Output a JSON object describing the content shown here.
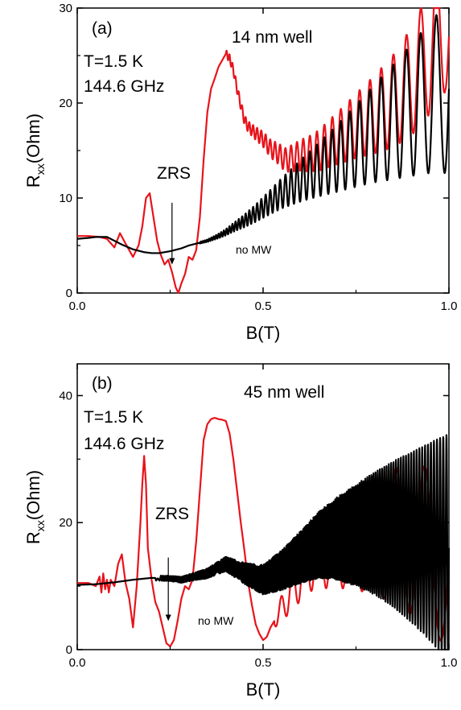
{
  "chart_data": [
    {
      "type": "line",
      "panel_label": "(a)",
      "annotations": {
        "well": "14 nm well",
        "temperature": "T=1.5 K",
        "frequency": "144.6 GHz",
        "zrs": "ZRS",
        "no_mw": "no MW"
      },
      "xlabel": "B(T)",
      "ylabel": {
        "main": "R",
        "sub": "xx",
        "unit": "(Ohm)"
      },
      "xlim": [
        0,
        1.0
      ],
      "ylim": [
        0,
        30
      ],
      "xticks": [
        0.0,
        0.5,
        1.0
      ],
      "xtick_labels": [
        "0.0",
        "0.5",
        "1.0"
      ],
      "yticks": [
        0,
        10,
        20,
        30
      ],
      "ytick_labels": [
        "0",
        "10",
        "20",
        "30"
      ],
      "grid": false,
      "zrs_arrow": {
        "x": 0.255,
        "y_from": 9.5,
        "y_to": 3.0
      },
      "series": [
        {
          "id": "red",
          "color": "#e8131b",
          "x": [
            0.0,
            0.03,
            0.06,
            0.08,
            0.1,
            0.115,
            0.13,
            0.15,
            0.165,
            0.175,
            0.185,
            0.195,
            0.205,
            0.215,
            0.225,
            0.235,
            0.245,
            0.255,
            0.265,
            0.272,
            0.28,
            0.29,
            0.3,
            0.31,
            0.32,
            0.33,
            0.34,
            0.35,
            0.36,
            0.37,
            0.38,
            0.39,
            0.4,
            0.41,
            0.42,
            0.43,
            0.44,
            0.45,
            0.46,
            0.48,
            0.5,
            0.52,
            0.54,
            0.56,
            0.58,
            0.6,
            0.62,
            0.65,
            0.68,
            0.7,
            0.72,
            0.75,
            0.8,
            0.85,
            0.9,
            0.95,
            0.97,
            0.99,
            1.0
          ],
          "y": [
            6.0,
            6.0,
            5.9,
            5.7,
            4.8,
            6.3,
            5.2,
            3.8,
            5.0,
            7.0,
            10.0,
            10.5,
            8.0,
            5.5,
            4.0,
            3.0,
            3.5,
            2.2,
            0.6,
            0.0,
            1.0,
            2.0,
            3.8,
            3.5,
            4.5,
            8.0,
            14.0,
            19.0,
            21.5,
            22.6,
            23.8,
            24.5,
            25.2,
            24.7,
            23.5,
            21.5,
            19.8,
            18.2,
            17.5,
            16.8,
            16.2,
            15.2,
            14.7,
            14.0,
            14.2,
            14.5,
            14.6,
            15.0,
            15.8,
            16.3,
            16.8,
            17.6,
            18.8,
            20.2,
            22.3,
            25.5,
            27.0,
            28.5,
            27.0
          ],
          "osc": {
            "start": 0.4,
            "amp_start": 0.4,
            "amp_end": 7.5,
            "cycles": 32,
            "scale": 0.4,
            "amp_exp": 1.6
          }
        },
        {
          "id": "black",
          "color": "#000000",
          "x": [
            0.0,
            0.03,
            0.05,
            0.08,
            0.1,
            0.12,
            0.15,
            0.18,
            0.2,
            0.22,
            0.25,
            0.28,
            0.3,
            0.33,
            0.35,
            0.38,
            0.4,
            0.42,
            0.45,
            0.48,
            0.5,
            0.55,
            0.6,
            0.65,
            0.7,
            0.75,
            0.8,
            0.85,
            0.9,
            0.95,
            0.98,
            1.0
          ],
          "y": [
            5.7,
            5.8,
            5.9,
            5.9,
            5.5,
            5.1,
            4.6,
            4.3,
            4.2,
            4.2,
            4.4,
            4.7,
            5.0,
            5.3,
            5.5,
            6.0,
            6.4,
            6.9,
            7.6,
            8.4,
            9.0,
            10.5,
            11.8,
            13.0,
            14.2,
            15.5,
            16.8,
            18.0,
            19.3,
            20.6,
            21.3,
            21.5
          ],
          "osc": {
            "start": 0.33,
            "amp_start": 0.1,
            "amp_end": 9.0,
            "cycles": 32,
            "scale": 0.4,
            "amp_exp": 1.6
          }
        }
      ]
    },
    {
      "type": "line",
      "panel_label": "(b)",
      "annotations": {
        "well": "45 nm well",
        "temperature": "T=1.5 K",
        "frequency": "144.6 GHz",
        "zrs": "ZRS",
        "no_mw": "no MW"
      },
      "xlabel": "B(T)",
      "ylabel": {
        "main": "R",
        "sub": "xx",
        "unit": "(Ohm)"
      },
      "xlim": [
        0,
        1.0
      ],
      "ylim": [
        0,
        45
      ],
      "xticks": [
        0.0,
        0.5,
        1.0
      ],
      "xtick_labels": [
        "0.0",
        "0.5",
        "1.0"
      ],
      "yticks": [
        0,
        20,
        40
      ],
      "ytick_labels": [
        "0",
        "20",
        "40"
      ],
      "grid": false,
      "zrs_arrow": {
        "x": 0.245,
        "y_from": 14.5,
        "y_to": 4.5
      },
      "series": [
        {
          "id": "red",
          "color": "#e8131b",
          "x": [
            0.0,
            0.03,
            0.05,
            0.06,
            0.065,
            0.07,
            0.075,
            0.08,
            0.085,
            0.09,
            0.1,
            0.11,
            0.12,
            0.13,
            0.14,
            0.15,
            0.16,
            0.17,
            0.175,
            0.18,
            0.185,
            0.19,
            0.2,
            0.21,
            0.22,
            0.23,
            0.24,
            0.25,
            0.26,
            0.27,
            0.28,
            0.29,
            0.3,
            0.31,
            0.32,
            0.33,
            0.34,
            0.35,
            0.36,
            0.37,
            0.38,
            0.39,
            0.4,
            0.41,
            0.42,
            0.43,
            0.44,
            0.45,
            0.46,
            0.47,
            0.48,
            0.49,
            0.5,
            0.51,
            0.52,
            0.54,
            0.56,
            0.58,
            0.6,
            0.62,
            0.65,
            0.7,
            0.75,
            0.8,
            0.85,
            0.9,
            0.95,
            1.0
          ],
          "y": [
            10.5,
            10.5,
            10.0,
            11.5,
            9.0,
            12.0,
            9.5,
            11.0,
            9.0,
            11.0,
            10.0,
            13.5,
            15.0,
            10.5,
            8.0,
            3.5,
            10.0,
            20.0,
            26.0,
            30.5,
            26.0,
            16.0,
            11.0,
            7.5,
            6.0,
            3.5,
            1.0,
            0.5,
            1.5,
            4.5,
            8.0,
            10.0,
            9.5,
            11.0,
            17.0,
            25.0,
            33.0,
            35.5,
            36.3,
            36.5,
            36.3,
            36.2,
            36.0,
            34.0,
            30.0,
            25.0,
            20.0,
            15.5,
            10.5,
            7.0,
            4.0,
            2.5,
            1.5,
            2.0,
            3.5,
            5.5,
            7.5,
            9.5,
            11.5,
            13.5,
            15.0,
            16.5,
            17.5,
            18.0,
            18.0,
            17.2,
            16.0,
            14.0
          ],
          "osc": {
            "start": 0.53,
            "amp_start": 1.0,
            "amp_end": 14.0,
            "cycles": 12,
            "scale": 0.47,
            "amp_exp": 0.8
          }
        },
        {
          "id": "black",
          "color": "#000000",
          "x": [
            0.0,
            0.05,
            0.1,
            0.15,
            0.2,
            0.25,
            0.28,
            0.3,
            0.35,
            0.4,
            0.45,
            0.5,
            0.55,
            0.6,
            0.65,
            0.7,
            0.75,
            0.8,
            0.85,
            0.9,
            0.95,
            1.0
          ],
          "y": [
            10.2,
            10.3,
            10.6,
            11.0,
            11.3,
            11.2,
            11.0,
            11.3,
            12.0,
            13.5,
            12.0,
            11.0,
            12.5,
            14.5,
            16.5,
            17.5,
            18.0,
            18.3,
            18.2,
            17.7,
            17.0,
            16.0
          ],
          "osc": {
            "start": 0.21,
            "amp_start": 0.4,
            "amp_end": 18.0,
            "cycles": 30,
            "scale": 0.79,
            "amp_exp": 2.2
          }
        }
      ]
    }
  ]
}
